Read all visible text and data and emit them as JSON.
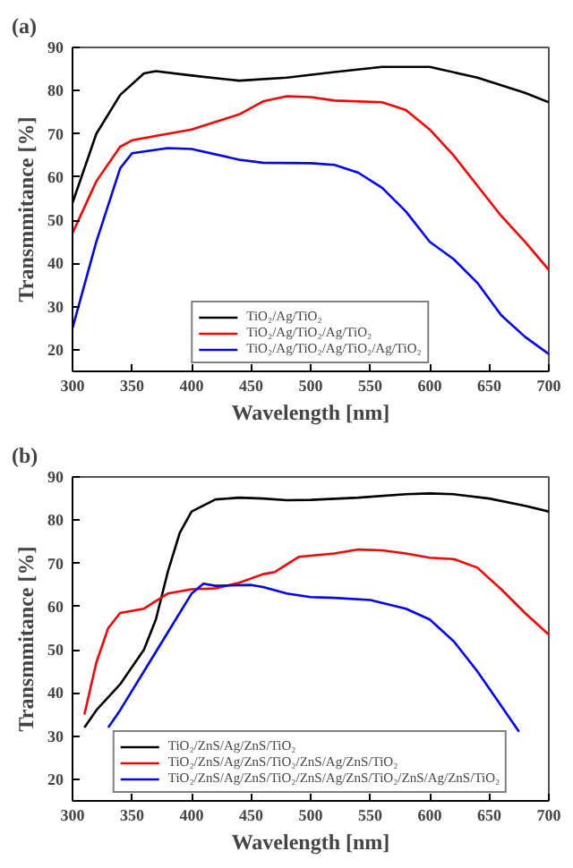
{
  "chart_data": [
    {
      "type": "line",
      "title": "(a)",
      "xlabel": "Wavelength [nm]",
      "ylabel": "Transmmitance [%]",
      "xlim": [
        300,
        700
      ],
      "ylim": [
        15,
        90
      ],
      "xticks": [
        300,
        350,
        400,
        450,
        500,
        550,
        600,
        650,
        700
      ],
      "yticks": [
        20,
        30,
        40,
        50,
        60,
        70,
        80,
        90
      ],
      "grid": false,
      "legend": "bottom",
      "marker": "none",
      "line_style": "solid",
      "series": [
        {
          "name": "TiO₂/Ag/TiO₂",
          "color": "#000000",
          "x": [
            300,
            320,
            340,
            360,
            370,
            400,
            440,
            480,
            520,
            560,
            600,
            640,
            680,
            700
          ],
          "values": [
            54,
            70,
            79,
            84,
            84.5,
            83.5,
            82.3,
            83,
            84.3,
            85.5,
            85.5,
            83,
            79.5,
            77.3
          ]
        },
        {
          "name": "TiO₂/Ag/TiO₂/Ag/TiO₂",
          "color": "#ff0000",
          "x": [
            300,
            320,
            340,
            350,
            380,
            400,
            440,
            460,
            480,
            500,
            520,
            560,
            580,
            600,
            620,
            640,
            660,
            680,
            700
          ],
          "values": [
            47,
            59,
            67,
            68.5,
            70,
            71,
            74.5,
            77.5,
            78.7,
            78.5,
            77.7,
            77.3,
            75.5,
            71,
            65,
            58,
            51,
            45,
            38.5
          ]
        },
        {
          "name": "TiO₂/Ag/TiO₂/Ag/TiO₂/Ag/TiO₂",
          "color": "#0000ff",
          "x": [
            300,
            320,
            340,
            350,
            380,
            400,
            440,
            460,
            500,
            520,
            540,
            560,
            580,
            600,
            620,
            640,
            660,
            680,
            700
          ],
          "values": [
            25,
            45,
            62,
            65.5,
            66.7,
            66.5,
            64,
            63.3,
            63.2,
            62.8,
            61,
            57.5,
            52,
            45,
            41,
            35.5,
            28,
            23,
            19
          ]
        }
      ]
    },
    {
      "type": "line",
      "title": "(b)",
      "xlabel": "Wavelength [nm]",
      "ylabel": "Transmmitance [%]",
      "xlim": [
        300,
        700
      ],
      "ylim": [
        15,
        90
      ],
      "xticks": [
        300,
        350,
        400,
        450,
        500,
        550,
        600,
        650,
        700
      ],
      "yticks": [
        20,
        30,
        40,
        50,
        60,
        70,
        80,
        90
      ],
      "grid": false,
      "legend": "bottom",
      "marker": "none",
      "line_style": "solid",
      "series": [
        {
          "name": "TiO₂/ZnS/Ag/ZnS/TiO₂",
          "color": "#000000",
          "x": [
            310,
            320,
            340,
            360,
            370,
            380,
            390,
            400,
            420,
            440,
            460,
            480,
            500,
            540,
            580,
            600,
            620,
            650,
            680,
            700
          ],
          "values": [
            32,
            36,
            42,
            50,
            57,
            68,
            77,
            82,
            84.8,
            85.2,
            85,
            84.6,
            84.7,
            85.2,
            86,
            86.2,
            86,
            85,
            83.3,
            82
          ]
        },
        {
          "name": "TiO₂/ZnS/Ag/ZnS/TiO₂/ZnS/Ag/ZnS/TiO₂",
          "color": "#ff0000",
          "x": [
            310,
            320,
            330,
            340,
            360,
            380,
            400,
            420,
            440,
            460,
            470,
            490,
            520,
            540,
            560,
            580,
            600,
            620,
            640,
            660,
            680,
            700
          ],
          "values": [
            35,
            47,
            55,
            58.5,
            59.5,
            63,
            64,
            64.2,
            65.5,
            67.5,
            68,
            71.5,
            72.3,
            73.2,
            73,
            72.3,
            71.3,
            71,
            69,
            64,
            58.5,
            53.5
          ]
        },
        {
          "name": "TiO₂/ZnS/Ag/ZnS/TiO₂/ZnS/Ag/ZnS/TiO₂/ZnS/Ag/ZnS/TiO₂",
          "color": "#0000ff",
          "x": [
            330,
            340,
            360,
            380,
            400,
            410,
            420,
            450,
            460,
            480,
            500,
            520,
            550,
            580,
            600,
            620,
            640,
            660,
            675
          ],
          "values": [
            32,
            36,
            45,
            54,
            63,
            65.3,
            64.8,
            65,
            64.5,
            63,
            62.2,
            62,
            61.5,
            59.5,
            57,
            52,
            45,
            37,
            31
          ]
        }
      ]
    }
  ]
}
